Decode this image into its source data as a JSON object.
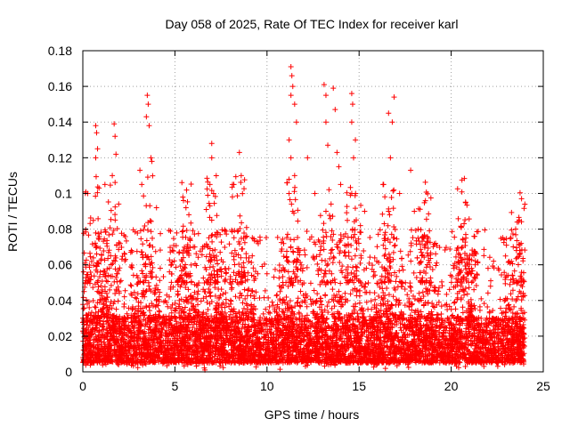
{
  "chart_data": {
    "type": "scatter",
    "title": "Day 058 of 2025, Rate Of TEC Index for receiver karl",
    "xlabel": "GPS time / hours",
    "ylabel": "ROTI / TECUs",
    "xlim": [
      0,
      25
    ],
    "ylim": [
      0,
      0.18
    ],
    "xticks": [
      "0",
      "5",
      "10",
      "15",
      "20",
      "25"
    ],
    "yticks": [
      "0",
      "0.02",
      "0.04",
      "0.06",
      "0.08",
      "0.1",
      "0.12",
      "0.14",
      "0.16",
      "0.18"
    ],
    "grid": true,
    "marker": "+",
    "color": "#ff0000",
    "x_extent": [
      0,
      24
    ],
    "baseline_band": [
      0.005,
      0.03
    ],
    "notable_points": [
      {
        "x": 0.7,
        "y": 0.138
      },
      {
        "x": 0.75,
        "y": 0.134
      },
      {
        "x": 0.8,
        "y": 0.125
      },
      {
        "x": 0.7,
        "y": 0.12
      },
      {
        "x": 1.7,
        "y": 0.139
      },
      {
        "x": 1.75,
        "y": 0.132
      },
      {
        "x": 1.8,
        "y": 0.122
      },
      {
        "x": 1.6,
        "y": 0.11
      },
      {
        "x": 1.2,
        "y": 0.105
      },
      {
        "x": 3.5,
        "y": 0.155
      },
      {
        "x": 3.55,
        "y": 0.15
      },
      {
        "x": 3.45,
        "y": 0.143
      },
      {
        "x": 3.6,
        "y": 0.138
      },
      {
        "x": 3.7,
        "y": 0.12
      },
      {
        "x": 3.75,
        "y": 0.118
      },
      {
        "x": 3.1,
        "y": 0.113
      },
      {
        "x": 3.2,
        "y": 0.105
      },
      {
        "x": 4.0,
        "y": 0.092
      },
      {
        "x": 5.6,
        "y": 0.092
      },
      {
        "x": 6.0,
        "y": 0.07
      },
      {
        "x": 7.0,
        "y": 0.128
      },
      {
        "x": 7.0,
        "y": 0.12
      },
      {
        "x": 6.9,
        "y": 0.105
      },
      {
        "x": 7.1,
        "y": 0.1
      },
      {
        "x": 7.0,
        "y": 0.085
      },
      {
        "x": 8.2,
        "y": 0.105
      },
      {
        "x": 8.5,
        "y": 0.123
      },
      {
        "x": 8.6,
        "y": 0.11
      },
      {
        "x": 9.2,
        "y": 0.065
      },
      {
        "x": 10.0,
        "y": 0.055
      },
      {
        "x": 11.3,
        "y": 0.171
      },
      {
        "x": 11.35,
        "y": 0.166
      },
      {
        "x": 11.4,
        "y": 0.16
      },
      {
        "x": 11.3,
        "y": 0.155
      },
      {
        "x": 11.5,
        "y": 0.15
      },
      {
        "x": 11.6,
        "y": 0.14
      },
      {
        "x": 11.2,
        "y": 0.13
      },
      {
        "x": 11.3,
        "y": 0.12
      },
      {
        "x": 11.5,
        "y": 0.11
      },
      {
        "x": 11.2,
        "y": 0.1
      },
      {
        "x": 11.4,
        "y": 0.09
      },
      {
        "x": 12.2,
        "y": 0.12
      },
      {
        "x": 12.6,
        "y": 0.1
      },
      {
        "x": 13.1,
        "y": 0.161
      },
      {
        "x": 13.2,
        "y": 0.155
      },
      {
        "x": 13.6,
        "y": 0.159
      },
      {
        "x": 13.7,
        "y": 0.147
      },
      {
        "x": 13.2,
        "y": 0.14
      },
      {
        "x": 13.3,
        "y": 0.127
      },
      {
        "x": 13.8,
        "y": 0.123
      },
      {
        "x": 13.9,
        "y": 0.115
      },
      {
        "x": 14.0,
        "y": 0.105
      },
      {
        "x": 13.2,
        "y": 0.09
      },
      {
        "x": 14.6,
        "y": 0.156
      },
      {
        "x": 14.65,
        "y": 0.15
      },
      {
        "x": 14.6,
        "y": 0.14
      },
      {
        "x": 14.8,
        "y": 0.13
      },
      {
        "x": 14.7,
        "y": 0.12
      },
      {
        "x": 14.6,
        "y": 0.1
      },
      {
        "x": 15.3,
        "y": 0.09
      },
      {
        "x": 16.3,
        "y": 0.105
      },
      {
        "x": 16.6,
        "y": 0.145
      },
      {
        "x": 16.8,
        "y": 0.14
      },
      {
        "x": 16.7,
        "y": 0.12
      },
      {
        "x": 16.6,
        "y": 0.09
      },
      {
        "x": 16.9,
        "y": 0.154
      },
      {
        "x": 17.2,
        "y": 0.1
      },
      {
        "x": 17.8,
        "y": 0.113
      },
      {
        "x": 18.0,
        "y": 0.09
      },
      {
        "x": 18.2,
        "y": 0.075
      },
      {
        "x": 20.7,
        "y": 0.083
      },
      {
        "x": 20.8,
        "y": 0.075
      },
      {
        "x": 21.0,
        "y": 0.063
      },
      {
        "x": 21.3,
        "y": 0.06
      },
      {
        "x": 22.0,
        "y": 0.058
      },
      {
        "x": 22.3,
        "y": 0.062
      },
      {
        "x": 23.0,
        "y": 0.071
      },
      {
        "x": 23.5,
        "y": 0.08
      },
      {
        "x": 23.7,
        "y": 0.085
      },
      {
        "x": 23.8,
        "y": 0.072
      },
      {
        "x": 24.0,
        "y": 0.094
      }
    ]
  }
}
